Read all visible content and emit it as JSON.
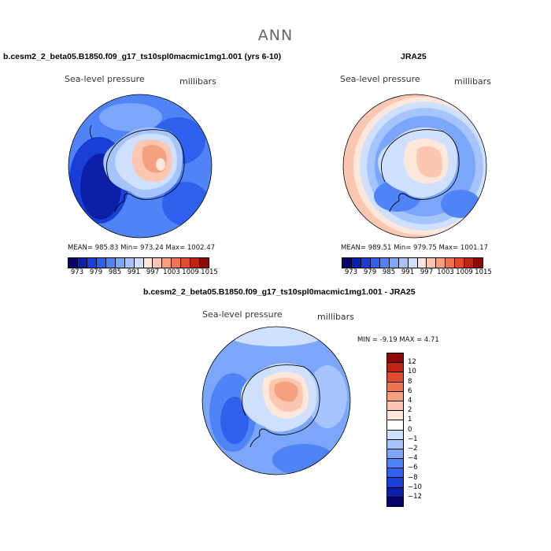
{
  "main_title": "ANN",
  "panel1": {
    "title": "b.cesm2_2_beta05.B1850.f09_g17_ts10spl0macmic1mg1.001 (yrs 6-10)",
    "variable": "Sea-level pressure",
    "units": "millibars",
    "stats": "MEAN= 985.83   Min= 973.24   Max= 1002.47"
  },
  "panel2": {
    "title": "JRA25",
    "variable": "Sea-level pressure",
    "units": "millibars",
    "stats": "MEAN= 989.51   Min= 979.75   Max= 1001.17"
  },
  "panel3": {
    "title": "b.cesm2_2_beta05.B1850.f09_g17_ts10spl0macmic1mg1.001 - JRA25",
    "variable": "Sea-level pressure",
    "units": "millibars",
    "stats": "MIN =   -9.19  MAX =    4.71"
  },
  "colors": {
    "abs_scale": [
      "#08006b",
      "#0c1fa8",
      "#1a3fd6",
      "#2f61ee",
      "#4f83f6",
      "#7ba6fa",
      "#a6c4fc",
      "#cfe0fe",
      "#fde6da",
      "#fbc7b0",
      "#f6a07f",
      "#ef7552",
      "#e14a2c",
      "#bf2412",
      "#8b0a07"
    ],
    "diff_scale": [
      "#08006b",
      "#0c1fa8",
      "#1a3fd6",
      "#2f61ee",
      "#4f83f6",
      "#7ba6fa",
      "#a6c4fc",
      "#cfe0fe",
      "#ffffff",
      "#fde6da",
      "#fbc7b0",
      "#f6a07f",
      "#ef7552",
      "#e14a2c",
      "#bf2412",
      "#8b0a07"
    ]
  },
  "chart_data": [
    {
      "type": "heatmap",
      "title": "b.cesm2_2_beta05.B1850.f09_g17_ts10spl0macmic1mg1.001 (yrs 6-10)",
      "variable": "Sea-level pressure",
      "units": "millibars",
      "projection": "south-polar-stereographic",
      "mean": 985.83,
      "min": 973.24,
      "max": 1002.47,
      "colorbar_ticks": [
        "973",
        "979",
        "985",
        "991",
        "997",
        "1003",
        "1009",
        "1015"
      ],
      "colorbar_orientation": "horizontal"
    },
    {
      "type": "heatmap",
      "title": "JRA25",
      "variable": "Sea-level pressure",
      "units": "millibars",
      "projection": "south-polar-stereographic",
      "mean": 989.51,
      "min": 979.75,
      "max": 1001.17,
      "colorbar_ticks": [
        "973",
        "979",
        "985",
        "991",
        "997",
        "1003",
        "1009",
        "1015"
      ],
      "colorbar_orientation": "horizontal"
    },
    {
      "type": "heatmap",
      "title": "b.cesm2_2_beta05.B1850.f09_g17_ts10spl0macmic1mg1.001 - JRA25",
      "variable": "Sea-level pressure",
      "units": "millibars",
      "projection": "south-polar-stereographic",
      "min": -9.19,
      "max": 4.71,
      "colorbar_ticks": [
        "12",
        "10",
        "8",
        "6",
        "4",
        "2",
        "1",
        "0",
        "−1",
        "−2",
        "−4",
        "−6",
        "−8",
        "−10",
        "−12"
      ],
      "colorbar_orientation": "vertical"
    }
  ]
}
